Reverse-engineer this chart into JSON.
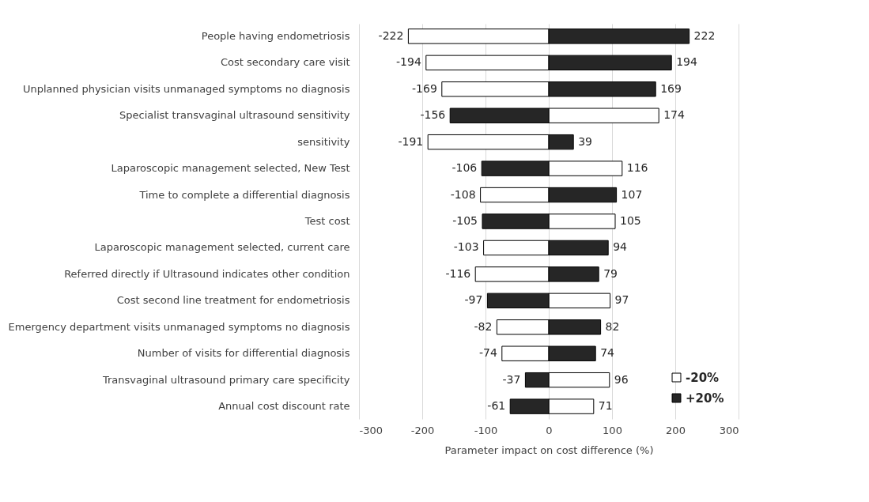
{
  "chart_data": {
    "type": "bar",
    "orientation": "horizontal",
    "stacked": true,
    "xlabel": "Parameter impact on cost difference (%)",
    "categories": [
      "People having endometriosis",
      "Cost secondary care visit",
      "Unplanned physician visits unmanaged symptoms no diagnosis",
      "Specialist transvaginal ultrasound sensitivity",
      "sensitivity",
      "Laparoscopic management selected, New Test",
      "Time to complete a differential diagnosis",
      "Test cost",
      "Laparoscopic management selected, current care",
      "Referred directly if Ultrasound indicates other condition",
      "Cost second line treatment for endometriosis",
      "Emergency department visits unmanaged symptoms no diagnosis",
      "Number of visits for differential diagnosis",
      "Transvaginal ultrasound primary care specificity",
      "Annual cost discount rate"
    ],
    "series": [
      {
        "name": "-20%",
        "color": "#ffffff",
        "values": [
          -222,
          -194,
          -169,
          174,
          -191,
          116,
          -108,
          105,
          -103,
          -116,
          97,
          -82,
          -74,
          96,
          71
        ]
      },
      {
        "name": "+20%",
        "color": "#262626",
        "values": [
          222,
          194,
          169,
          -156,
          39,
          -106,
          107,
          -105,
          94,
          79,
          -97,
          82,
          74,
          -37,
          -61
        ]
      }
    ],
    "xlim": [
      -300,
      300
    ],
    "xticks": [
      -300,
      -200,
      -100,
      0,
      100,
      200,
      300
    ],
    "grid": "x",
    "legend": "bottom right",
    "data_labels": true
  }
}
